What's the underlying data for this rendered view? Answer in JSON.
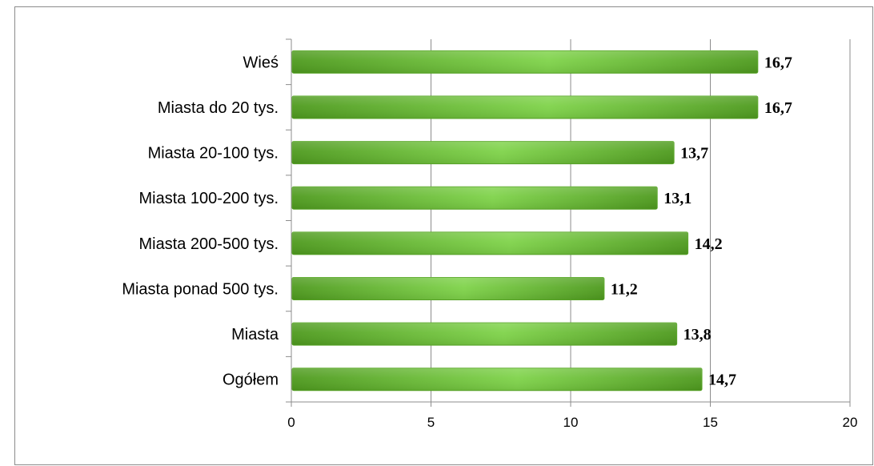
{
  "chart_data": {
    "type": "bar",
    "orientation": "horizontal",
    "categories": [
      "Wieś",
      "Miasta do 20 tys.",
      "Miasta 20-100 tys.",
      "Miasta 100-200 tys.",
      "Miasta 200-500 tys.",
      "Miasta ponad 500 tys.",
      "Miasta",
      "Ogółem"
    ],
    "values": [
      16.7,
      16.7,
      13.7,
      13.1,
      14.2,
      11.2,
      13.8,
      14.7
    ],
    "value_labels": [
      "16,7",
      "16,7",
      "13,7",
      "13,1",
      "14,2",
      "11,2",
      "13,8",
      "14,7"
    ],
    "x_ticks": [
      0,
      5,
      10,
      15,
      20
    ],
    "x_tick_labels": [
      "0",
      "5",
      "10",
      "15",
      "20"
    ],
    "xlim": [
      0,
      20
    ],
    "grid": "vertical",
    "legend": "none",
    "colors": {
      "bar_dark": "#4e9a1e",
      "bar_light": "#7fd34a",
      "bar_edge": "#5aa828",
      "grid": "#8c8c8c",
      "axis": "#8c8c8c"
    }
  }
}
